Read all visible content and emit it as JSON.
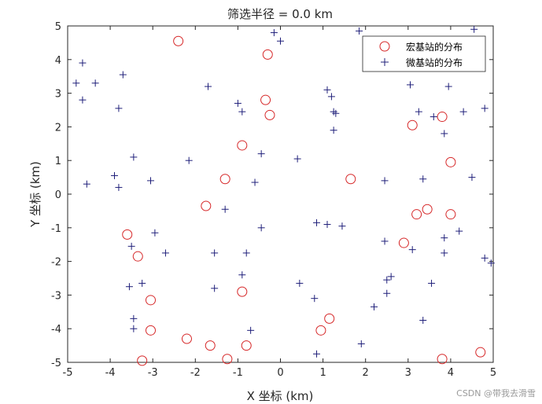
{
  "chart_data": {
    "type": "scatter",
    "title": "筛选半径 = 0.0 km",
    "xlabel": "X 坐标 (km)",
    "ylabel": "Y 坐标 (km)",
    "xlim": [
      -5,
      5
    ],
    "ylim": [
      -5,
      5
    ],
    "xticks": [
      -5,
      -4,
      -3,
      -2,
      -1,
      0,
      1,
      2,
      3,
      4,
      5
    ],
    "yticks": [
      -5,
      -4,
      -3,
      -2,
      -1,
      0,
      1,
      2,
      3,
      4,
      5
    ],
    "grid": false,
    "legend_position": "top-right",
    "series": [
      {
        "name": "宏基站的分布",
        "marker": "circle",
        "color": "#d62728",
        "points": [
          [
            -2.4,
            4.55
          ],
          [
            -0.3,
            4.15
          ],
          [
            -0.35,
            2.8
          ],
          [
            -0.25,
            2.35
          ],
          [
            -0.9,
            1.45
          ],
          [
            -1.3,
            0.45
          ],
          [
            -1.75,
            -0.35
          ],
          [
            1.65,
            0.45
          ],
          [
            3.1,
            2.05
          ],
          [
            3.8,
            2.3
          ],
          [
            4.0,
            0.95
          ],
          [
            3.2,
            -0.6
          ],
          [
            3.45,
            -0.45
          ],
          [
            4.0,
            -0.6
          ],
          [
            2.9,
            -1.45
          ],
          [
            -3.6,
            -1.2
          ],
          [
            -3.35,
            -1.85
          ],
          [
            -3.05,
            -3.15
          ],
          [
            -0.9,
            -2.9
          ],
          [
            -3.05,
            -4.05
          ],
          [
            -2.2,
            -4.3
          ],
          [
            -1.65,
            -4.5
          ],
          [
            -0.8,
            -4.5
          ],
          [
            1.15,
            -3.7
          ],
          [
            0.95,
            -4.05
          ],
          [
            -1.25,
            -4.9
          ],
          [
            -3.25,
            -4.95
          ],
          [
            3.8,
            -4.9
          ],
          [
            4.7,
            -4.7
          ]
        ]
      },
      {
        "name": "微基站的分布",
        "marker": "plus",
        "color": "#1f1f7a",
        "points": [
          [
            -4.65,
            3.9
          ],
          [
            -4.8,
            3.3
          ],
          [
            -4.35,
            3.3
          ],
          [
            -4.65,
            2.8
          ],
          [
            -3.7,
            3.55
          ],
          [
            -3.8,
            2.55
          ],
          [
            -3.45,
            1.1
          ],
          [
            -3.9,
            0.55
          ],
          [
            -3.8,
            0.2
          ],
          [
            -4.55,
            0.3
          ],
          [
            -3.05,
            0.4
          ],
          [
            -2.15,
            1.0
          ],
          [
            -1.7,
            3.2
          ],
          [
            -1.0,
            2.7
          ],
          [
            -0.9,
            2.45
          ],
          [
            -0.15,
            4.8
          ],
          [
            0.0,
            4.55
          ],
          [
            1.85,
            4.85
          ],
          [
            4.55,
            4.9
          ],
          [
            1.1,
            3.1
          ],
          [
            1.2,
            2.9
          ],
          [
            1.25,
            2.45
          ],
          [
            1.3,
            2.4
          ],
          [
            1.25,
            1.9
          ],
          [
            3.05,
            3.25
          ],
          [
            3.25,
            2.45
          ],
          [
            3.6,
            2.3
          ],
          [
            3.95,
            3.2
          ],
          [
            4.3,
            2.45
          ],
          [
            4.8,
            2.55
          ],
          [
            3.85,
            1.8
          ],
          [
            4.5,
            0.5
          ],
          [
            3.35,
            0.45
          ],
          [
            2.45,
            0.4
          ],
          [
            -0.45,
            1.2
          ],
          [
            0.4,
            1.05
          ],
          [
            -0.6,
            0.35
          ],
          [
            -1.3,
            -0.45
          ],
          [
            -0.45,
            -1.0
          ],
          [
            0.85,
            -0.85
          ],
          [
            1.1,
            -0.9
          ],
          [
            1.45,
            -0.95
          ],
          [
            2.45,
            -1.4
          ],
          [
            3.1,
            -1.65
          ],
          [
            3.85,
            -1.3
          ],
          [
            4.2,
            -1.1
          ],
          [
            3.85,
            -1.75
          ],
          [
            4.8,
            -1.9
          ],
          [
            4.95,
            -2.05
          ],
          [
            -2.95,
            -1.15
          ],
          [
            -3.5,
            -1.55
          ],
          [
            -2.7,
            -1.75
          ],
          [
            -1.55,
            -1.75
          ],
          [
            -0.8,
            -1.75
          ],
          [
            -0.9,
            -2.4
          ],
          [
            -1.55,
            -2.8
          ],
          [
            -3.55,
            -2.75
          ],
          [
            -3.25,
            -2.65
          ],
          [
            0.45,
            -2.65
          ],
          [
            0.8,
            -3.1
          ],
          [
            2.5,
            -2.55
          ],
          [
            2.6,
            -2.45
          ],
          [
            2.5,
            -2.95
          ],
          [
            2.2,
            -3.35
          ],
          [
            3.55,
            -2.65
          ],
          [
            -3.45,
            -3.7
          ],
          [
            -3.45,
            -4.0
          ],
          [
            -0.7,
            -4.05
          ],
          [
            3.35,
            -3.75
          ],
          [
            1.9,
            -4.45
          ],
          [
            0.85,
            -4.75
          ]
        ]
      }
    ]
  },
  "watermark": "CSDN @带我去滑雪"
}
